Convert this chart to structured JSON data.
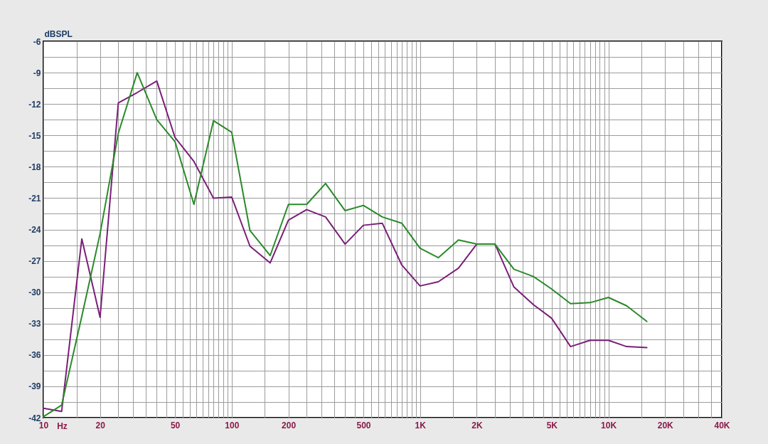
{
  "chart_data": {
    "type": "line",
    "ylabel": "dBSPL",
    "xlabel": "Hz",
    "log": "x",
    "grid": true,
    "x": [
      10,
      12.5,
      16,
      20,
      25,
      31.5,
      40,
      50,
      63,
      80,
      100,
      125,
      160,
      200,
      250,
      315,
      400,
      500,
      630,
      800,
      1000,
      1250,
      1600,
      2000,
      2500,
      3150,
      4000,
      5000,
      6300,
      8000,
      10000,
      12500,
      16000
    ],
    "series": [
      {
        "color": "#7a1f78",
        "values": [
          -41.1,
          -41.4,
          -24.9,
          -32.4,
          -11.9,
          -10.9,
          -9.8,
          -15.2,
          -17.5,
          -21.0,
          -20.9,
          -25.6,
          -27.2,
          -23.1,
          -22.1,
          -22.8,
          -25.4,
          -23.6,
          -23.4,
          -27.4,
          -29.4,
          -29.0,
          -27.7,
          -25.4,
          -25.4,
          -29.5,
          -31.2,
          -32.5,
          -35.2,
          -34.6,
          -34.6,
          -35.2,
          -35.3
        ]
      },
      {
        "color": "#2a8a2a",
        "values": [
          -41.9,
          -40.8,
          -32.3,
          -24.4,
          -14.8,
          -9.0,
          -13.5,
          -15.6,
          -21.6,
          -13.6,
          -14.7,
          -24.1,
          -26.5,
          -21.6,
          -21.6,
          -19.6,
          -22.2,
          -21.7,
          -22.8,
          -23.4,
          -25.8,
          -26.7,
          -25.0,
          -25.4,
          -25.4,
          -27.8,
          -28.5,
          -29.7,
          -31.1,
          -31.0,
          -30.5,
          -31.3,
          -32.8
        ]
      }
    ],
    "xlim": [
      10,
      40000
    ],
    "ylim": [
      -42,
      -6
    ],
    "xticks": [
      10,
      {
        "value": 15,
        "label": null
      },
      20,
      {
        "value": 25,
        "label": null
      },
      {
        "value": 30,
        "label": null
      },
      {
        "value": 35,
        "label": null
      },
      {
        "value": 40,
        "label": null
      },
      {
        "value": 45,
        "label": null
      },
      50,
      {
        "value": 55,
        "label": null
      },
      {
        "value": 60,
        "label": null
      },
      {
        "value": 65,
        "label": null
      },
      {
        "value": 70,
        "label": null
      },
      {
        "value": 75,
        "label": null
      },
      {
        "value": 80,
        "label": null
      },
      {
        "value": 85,
        "label": null
      },
      {
        "value": 90,
        "label": null
      },
      {
        "value": 95,
        "label": null
      },
      100,
      {
        "value": 150,
        "label": null
      },
      200,
      {
        "value": 250,
        "label": null
      },
      {
        "value": 300,
        "label": null
      },
      {
        "value": 350,
        "label": null
      },
      {
        "value": 400,
        "label": null
      },
      {
        "value": 450,
        "label": null
      },
      500,
      {
        "value": 550,
        "label": null
      },
      {
        "value": 600,
        "label": null
      },
      {
        "value": 650,
        "label": null
      },
      {
        "value": 700,
        "label": null
      },
      {
        "value": 750,
        "label": null
      },
      {
        "value": 800,
        "label": null
      },
      {
        "value": 850,
        "label": null
      },
      {
        "value": 900,
        "label": null
      },
      {
        "value": 950,
        "label": null
      },
      {
        "value": 1000,
        "label": "1K"
      },
      {
        "value": 1500,
        "label": null
      },
      {
        "value": 2000,
        "label": "2K"
      },
      {
        "value": 2500,
        "label": null
      },
      {
        "value": 3000,
        "label": null
      },
      {
        "value": 3500,
        "label": null
      },
      {
        "value": 4000,
        "label": null
      },
      {
        "value": 4500,
        "label": null
      },
      {
        "value": 5000,
        "label": "5K"
      },
      {
        "value": 5500,
        "label": null
      },
      {
        "value": 6000,
        "label": null
      },
      {
        "value": 6500,
        "label": null
      },
      {
        "value": 7000,
        "label": null
      },
      {
        "value": 7500,
        "label": null
      },
      {
        "value": 8000,
        "label": null
      },
      {
        "value": 8500,
        "label": null
      },
      {
        "value": 9000,
        "label": null
      },
      {
        "value": 9500,
        "label": null
      },
      {
        "value": 10000,
        "label": "10K"
      },
      {
        "value": 15000,
        "label": null
      },
      {
        "value": 20000,
        "label": "20K"
      },
      {
        "value": 25000,
        "label": null
      },
      {
        "value": 30000,
        "label": null
      },
      {
        "value": 35000,
        "label": null
      },
      {
        "value": 40000,
        "label": "40K"
      }
    ],
    "yticks": [
      -42,
      {
        "value": -40.5,
        "label": null
      },
      -39,
      {
        "value": -37.5,
        "label": null
      },
      -36,
      {
        "value": -34.5,
        "label": null
      },
      -33,
      {
        "value": -31.5,
        "label": null
      },
      -30,
      {
        "value": -28.5,
        "label": null
      },
      -27,
      {
        "value": -25.5,
        "label": null
      },
      -24,
      {
        "value": -22.5,
        "label": null
      },
      -21,
      {
        "value": -19.5,
        "label": null
      },
      -18,
      {
        "value": -16.5,
        "label": null
      },
      -15,
      {
        "value": -13.5,
        "label": null
      },
      -12,
      {
        "value": -10.5,
        "label": null
      },
      -9,
      {
        "value": -7.5,
        "label": null
      },
      -6
    ]
  }
}
